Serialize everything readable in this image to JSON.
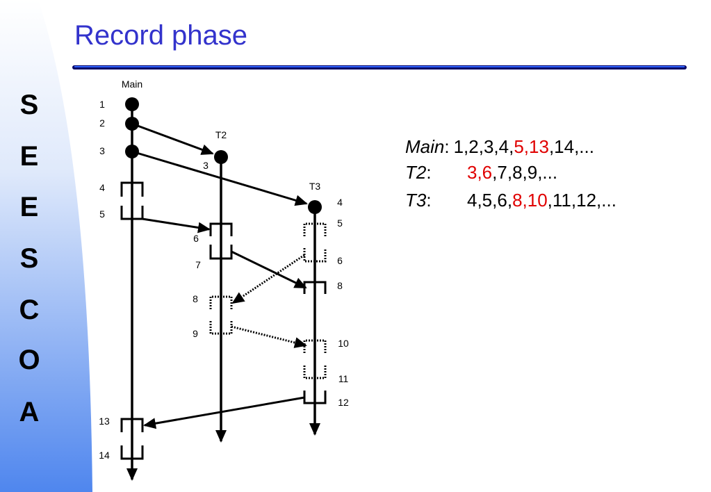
{
  "title": "Record phase",
  "sidebar": [
    "S",
    "E",
    "E",
    "S",
    "C",
    "O",
    "A"
  ],
  "threads": [
    "Main",
    "T2",
    "T3"
  ],
  "labels": {
    "main": [
      "1",
      "2",
      "3",
      "4",
      "5",
      "13",
      "14"
    ],
    "t2": [
      "3",
      "6",
      "7",
      "8",
      "9"
    ],
    "t3": [
      "4",
      "5",
      "6",
      "8",
      "10",
      "11",
      "12"
    ]
  },
  "trace": [
    {
      "name": "Main",
      "colon": ":",
      "segments": [
        {
          "text": "1,2,3,4,",
          "highlight": false
        },
        {
          "text": "5,13",
          "highlight": true
        },
        {
          "text": ",14,...",
          "highlight": false
        }
      ]
    },
    {
      "name": "T2",
      "colon": ":",
      "segments": [
        {
          "text": "3,6",
          "highlight": true
        },
        {
          "text": ",7,8,9,...",
          "highlight": false
        }
      ]
    },
    {
      "name": "T3",
      "colon": ":",
      "segments": [
        {
          "text": "4,5,6,",
          "highlight": false
        },
        {
          "text": "8,10",
          "highlight": true
        },
        {
          "text": ",11,12,...",
          "highlight": false
        }
      ]
    }
  ]
}
